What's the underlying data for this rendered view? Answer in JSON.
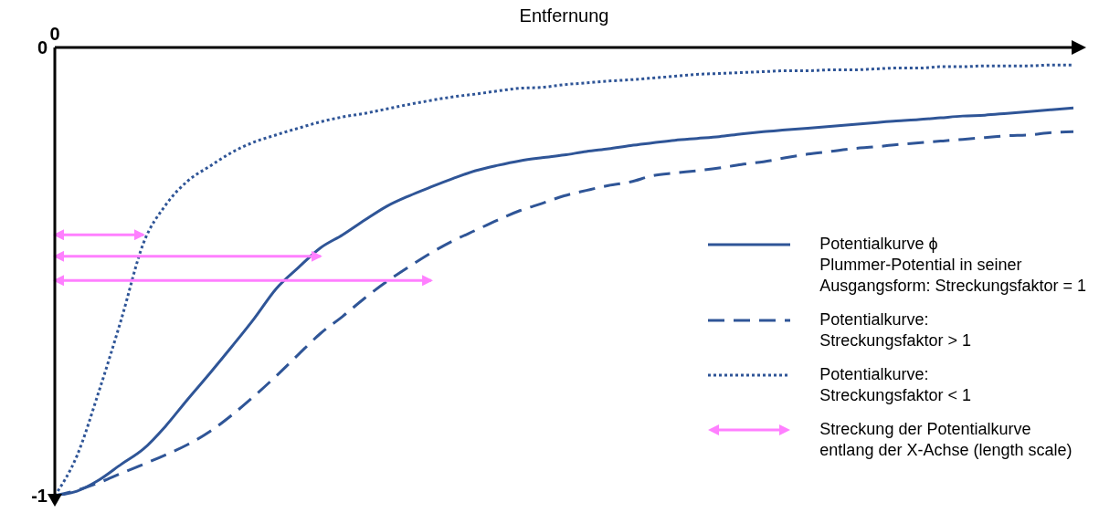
{
  "chart_data": {
    "type": "line",
    "xlabel": "Entfernung",
    "categories": [
      "0",
      null,
      null,
      null,
      null,
      null,
      null,
      null,
      null,
      null,
      null,
      null,
      null,
      null,
      null,
      null,
      null,
      null,
      null,
      null,
      null,
      null,
      null,
      null,
      null,
      null,
      null,
      null,
      null,
      null,
      null,
      null,
      null,
      null,
      null,
      null,
      null,
      null,
      null,
      null,
      null,
      null,
      null,
      null,
      null,
      null,
      null
    ],
    "ylim": [
      -1,
      0
    ],
    "yticks": [
      0,
      -1
    ],
    "grid": false,
    "legend": "right",
    "marker": "none",
    "series": [
      {
        "name": "Potentialkurve ϕ\nPlummer-Potential in seiner\nAusgangsform: Streckungsfaktor = 1",
        "color": "#2f5597",
        "line_style": "solid",
        "values": [
          -1,
          -0.99,
          -0.965,
          -0.93,
          -0.896,
          -0.845,
          -0.785,
          -0.727,
          -0.667,
          -0.605,
          -0.538,
          -0.491,
          -0.447,
          -0.418,
          -0.385,
          -0.354,
          -0.331,
          -0.311,
          -0.292,
          -0.275,
          -0.263,
          -0.253,
          -0.246,
          -0.24,
          -0.232,
          -0.226,
          -0.219,
          -0.213,
          -0.207,
          -0.203,
          -0.199,
          -0.193,
          -0.188,
          -0.184,
          -0.18,
          -0.176,
          -0.172,
          -0.168,
          -0.164,
          -0.161,
          -0.157,
          -0.153,
          -0.151,
          -0.147,
          -0.143,
          -0.139,
          -0.135
        ]
      },
      {
        "name": "Potentialkurve:\nStreckungsfaktor > 1",
        "color": "#2f5597",
        "line_style": "dashed",
        "values": [
          -1,
          -0.988,
          -0.971,
          -0.95,
          -0.93,
          -0.909,
          -0.886,
          -0.857,
          -0.82,
          -0.778,
          -0.733,
          -0.685,
          -0.638,
          -0.6,
          -0.559,
          -0.522,
          -0.489,
          -0.458,
          -0.431,
          -0.408,
          -0.385,
          -0.364,
          -0.348,
          -0.331,
          -0.319,
          -0.308,
          -0.3,
          -0.286,
          -0.28,
          -0.275,
          -0.269,
          -0.261,
          -0.255,
          -0.246,
          -0.238,
          -0.232,
          -0.226,
          -0.222,
          -0.217,
          -0.213,
          -0.209,
          -0.205,
          -0.201,
          -0.197,
          -0.195,
          -0.19,
          -0.188
        ]
      },
      {
        "name": "Potentialkurve:\nStreckungsfaktor < 1",
        "color": "#2f5597",
        "line_style": "dotted",
        "values": [
          -1,
          -0.911,
          -0.766,
          -0.607,
          -0.437,
          -0.352,
          -0.298,
          -0.265,
          -0.234,
          -0.211,
          -0.195,
          -0.18,
          -0.166,
          -0.155,
          -0.147,
          -0.137,
          -0.127,
          -0.118,
          -0.11,
          -0.104,
          -0.097,
          -0.091,
          -0.089,
          -0.083,
          -0.079,
          -0.075,
          -0.072,
          -0.068,
          -0.064,
          -0.06,
          -0.058,
          -0.056,
          -0.054,
          -0.052,
          -0.052,
          -0.05,
          -0.05,
          -0.048,
          -0.046,
          -0.046,
          -0.043,
          -0.043,
          -0.041,
          -0.041,
          -0.041,
          -0.039,
          -0.039
        ]
      },
      {
        "name": "Streckung der Potentialkurve\nentlang der X-Achse (length scale)",
        "color": "#ff80ff",
        "line_style": "solid",
        "values": [
          -0.418,
          -0.418,
          -0.418,
          -0.418,
          -0.418,
          null,
          null,
          null,
          null,
          null,
          null,
          null,
          null,
          null,
          null,
          null,
          null,
          null,
          null,
          null,
          null,
          null,
          null,
          null,
          null,
          null,
          null,
          null,
          null,
          null,
          null,
          null,
          null,
          null,
          null,
          null,
          null,
          null,
          null,
          null,
          null,
          null,
          null,
          null,
          null,
          null,
          null
        ]
      },
      {
        "color": "#ff80ff",
        "line_style": "solid",
        "values": [
          -0.466,
          -0.466,
          -0.466,
          -0.466,
          -0.466,
          -0.466,
          -0.466,
          -0.466,
          -0.466,
          -0.466,
          -0.466,
          -0.466,
          -0.466,
          null,
          null,
          null,
          null,
          null,
          null,
          null,
          null,
          null,
          null,
          null,
          null,
          null,
          null,
          null,
          null,
          null,
          null,
          null,
          null,
          null,
          null,
          null,
          null,
          null,
          null,
          null,
          null,
          null,
          null,
          null,
          null,
          null,
          null
        ]
      },
      {
        "color": "#ff80ff",
        "line_style": "solid",
        "values": [
          -0.52,
          -0.52,
          -0.52,
          -0.52,
          -0.52,
          -0.52,
          -0.52,
          -0.52,
          -0.52,
          -0.52,
          -0.52,
          -0.52,
          -0.52,
          -0.52,
          -0.52,
          -0.52,
          -0.52,
          -0.52,
          null,
          null,
          null,
          null,
          null,
          null,
          null,
          null,
          null,
          null,
          null,
          null,
          null,
          null,
          null,
          null,
          null,
          null,
          null,
          null,
          null,
          null,
          null,
          null,
          null,
          null,
          null,
          null,
          null
        ]
      }
    ]
  }
}
